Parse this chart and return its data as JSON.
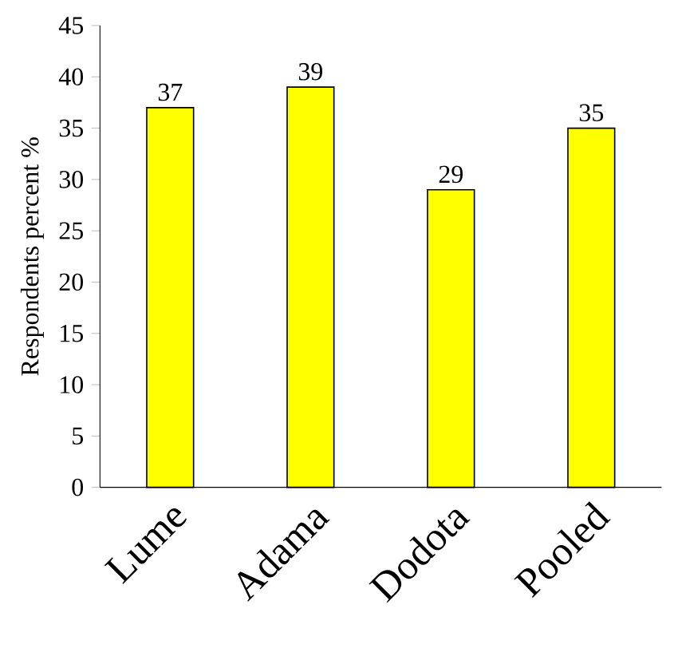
{
  "chart_data": {
    "type": "bar",
    "ylabel": "Respondents percent %",
    "categories": [
      "Lume",
      "Adama",
      "Dodota",
      "Pooled"
    ],
    "values": [
      37,
      39,
      29,
      35
    ],
    "color": "#ffff00",
    "ylim": [
      0,
      45
    ],
    "yticks": [
      0,
      5,
      10,
      15,
      20,
      25,
      30,
      35,
      40,
      45
    ],
    "data_labels": true
  }
}
